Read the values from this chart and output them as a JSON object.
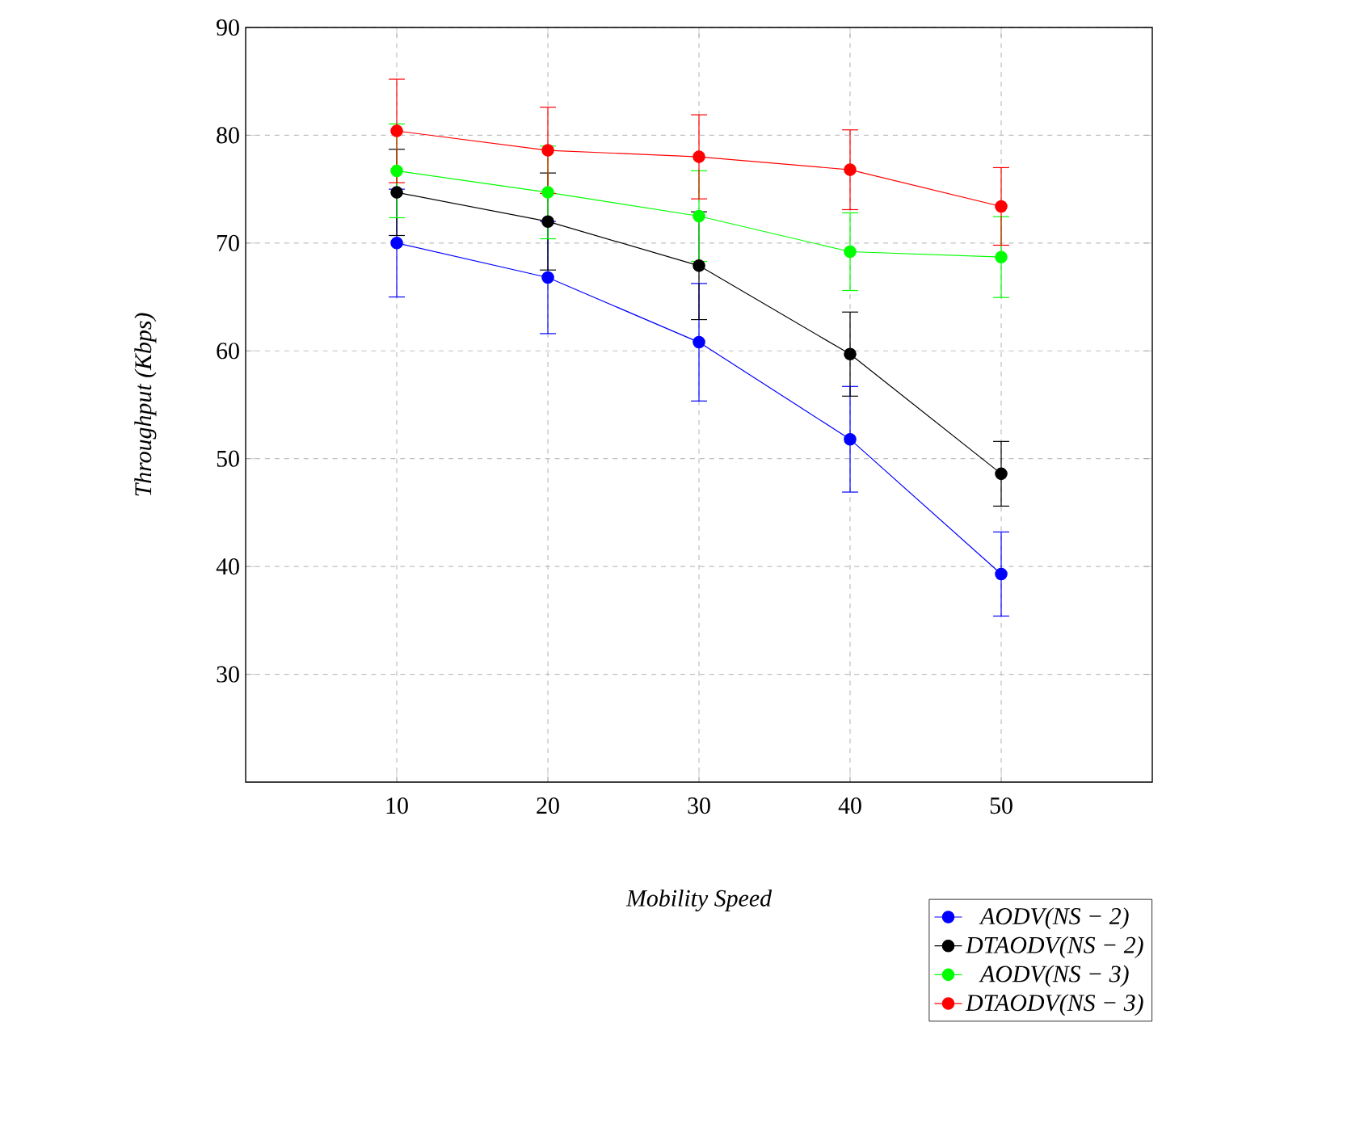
{
  "chart_data": {
    "type": "line",
    "xlabel": "Mobility Speed",
    "ylabel": "Throughput (Kbps)",
    "x": [
      10,
      20,
      30,
      40,
      50
    ],
    "series": [
      {
        "name": "AODV(NS − 2)",
        "color": "#0000ff",
        "values": [
          70.0,
          66.8,
          60.8,
          51.8,
          39.3
        ],
        "errors": [
          5.0,
          5.2,
          5.45,
          4.9,
          3.9
        ]
      },
      {
        "name": "DTAODV(NS − 2)",
        "color": "#000000",
        "values": [
          74.7,
          72.0,
          67.9,
          59.7,
          48.6
        ],
        "errors": [
          4.0,
          4.5,
          5.0,
          3.9,
          3.0
        ]
      },
      {
        "name": "AODV(NS − 3)",
        "color": "#00ff00",
        "values": [
          76.7,
          74.7,
          72.5,
          69.2,
          68.7
        ],
        "errors": [
          4.35,
          4.3,
          4.2,
          3.6,
          3.75
        ]
      },
      {
        "name": "DTAODV(NS − 3)",
        "color": "#ff0000",
        "values": [
          80.4,
          78.6,
          78.0,
          76.8,
          73.4
        ],
        "errors": [
          4.8,
          4.0,
          3.9,
          3.7,
          3.6
        ]
      }
    ],
    "xlim": [
      0,
      60
    ],
    "xticks": [
      10,
      20,
      30,
      40,
      50
    ],
    "ylim": [
      20,
      90
    ],
    "yticks": [
      30,
      40,
      50,
      60,
      70,
      80,
      90
    ],
    "grid": true,
    "legend": "bottom right",
    "marker": "circle",
    "line_style": "solid"
  }
}
